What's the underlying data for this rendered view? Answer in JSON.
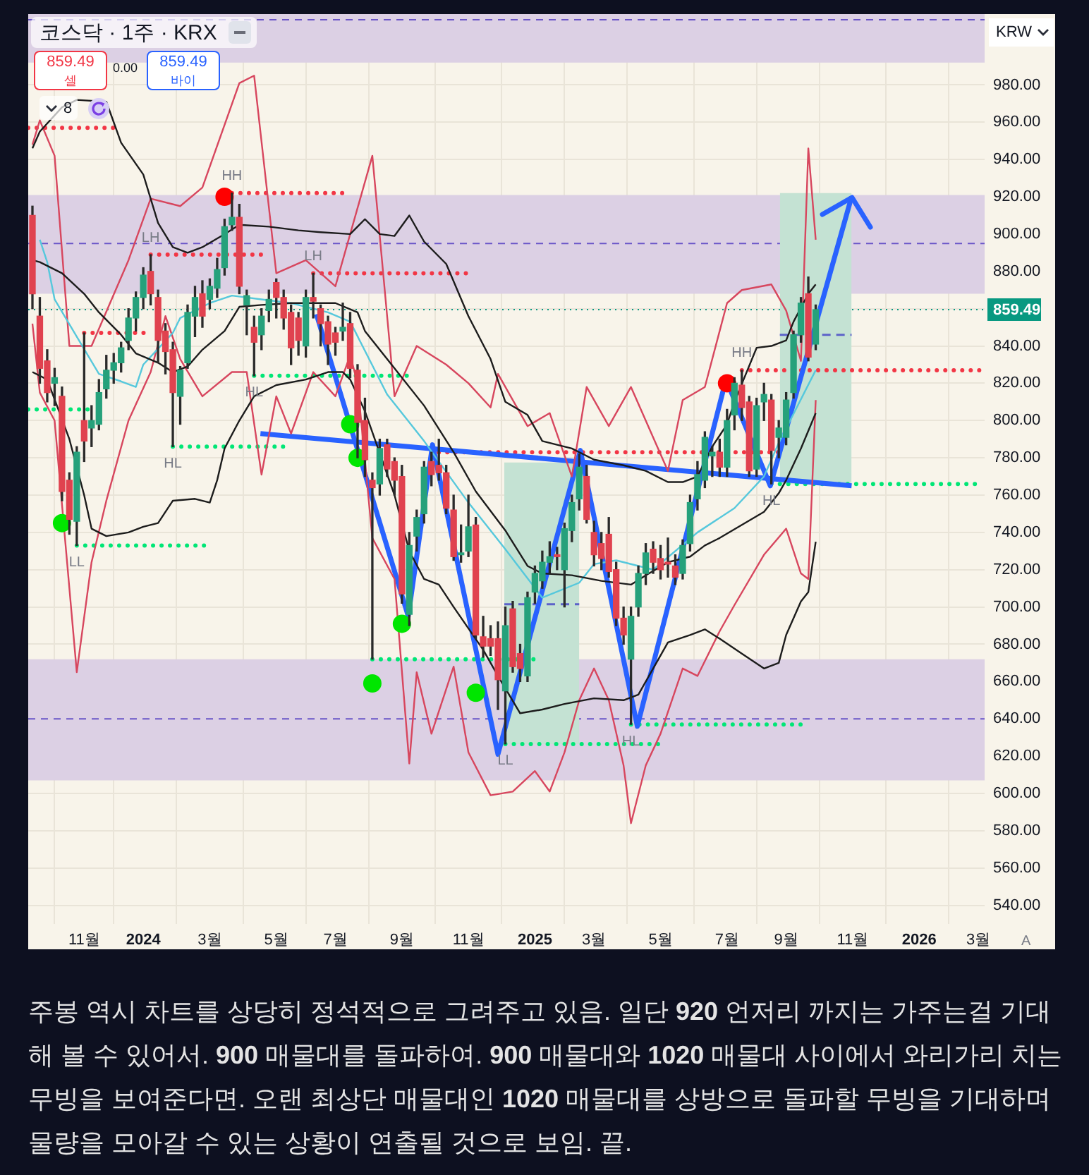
{
  "chart_data": {
    "type": "candlestick",
    "title": "코스닥 · 1주 · KRX",
    "x": [
      "2023-09-18",
      "2023-09-25",
      "2023-10-02",
      "2023-10-09",
      "2023-10-16",
      "2023-10-23",
      "2023-10-30",
      "2023-11-06",
      "2023-11-13",
      "2023-11-20",
      "2023-11-27",
      "2023-12-04",
      "2023-12-11",
      "2023-12-18",
      "2023-12-25",
      "2024-01-01",
      "2024-01-08",
      "2024-01-15",
      "2024-01-22",
      "2024-01-29",
      "2024-02-05",
      "2024-02-12",
      "2024-02-19",
      "2024-02-26",
      "2024-03-04",
      "2024-03-11",
      "2024-03-18",
      "2024-03-25",
      "2024-04-01",
      "2024-04-08",
      "2024-04-15",
      "2024-04-22",
      "2024-04-29",
      "2024-05-06",
      "2024-05-13",
      "2024-05-20",
      "2024-05-27",
      "2024-06-03",
      "2024-06-10",
      "2024-06-17",
      "2024-06-24",
      "2024-07-01",
      "2024-07-08",
      "2024-07-15",
      "2024-07-22",
      "2024-07-29",
      "2024-08-05",
      "2024-08-12",
      "2024-08-19",
      "2024-08-26",
      "2024-09-02",
      "2024-09-09",
      "2024-09-16",
      "2024-09-23",
      "2024-09-30",
      "2024-10-07",
      "2024-10-14",
      "2024-10-21",
      "2024-10-28",
      "2024-11-04",
      "2024-11-11",
      "2024-11-18",
      "2024-11-25",
      "2024-12-02",
      "2024-12-09",
      "2024-12-16",
      "2024-12-23",
      "2024-12-30",
      "2025-01-06",
      "2025-01-13",
      "2025-01-20",
      "2025-01-27",
      "2025-02-03",
      "2025-02-10",
      "2025-02-17",
      "2025-02-24",
      "2025-03-03",
      "2025-03-10",
      "2025-03-17",
      "2025-03-24",
      "2025-03-31",
      "2025-04-07",
      "2025-04-14",
      "2025-04-21",
      "2025-04-28",
      "2025-05-05",
      "2025-05-12",
      "2025-05-19",
      "2025-05-26",
      "2025-06-02",
      "2025-06-09",
      "2025-06-16",
      "2025-06-23",
      "2025-06-30",
      "2025-07-07",
      "2025-07-14",
      "2025-07-21",
      "2025-07-28",
      "2025-08-04",
      "2025-08-11",
      "2025-08-18",
      "2025-08-25",
      "2025-09-01",
      "2025-09-08",
      "2025-09-15",
      "2025-09-22",
      "2025-09-29"
    ],
    "ohlc": [
      [
        910,
        915,
        860,
        868
      ],
      [
        856,
        866,
        820,
        828
      ],
      [
        832,
        838,
        810,
        815
      ],
      [
        820,
        828,
        808,
        823
      ],
      [
        813,
        818,
        757,
        762
      ],
      [
        768,
        772,
        739,
        747
      ],
      [
        746,
        786,
        733,
        783
      ],
      [
        800,
        847,
        778,
        789
      ],
      [
        796,
        808,
        786,
        800
      ],
      [
        798,
        822,
        795,
        815
      ],
      [
        817,
        835,
        812,
        827
      ],
      [
        827,
        836,
        820,
        831
      ],
      [
        831,
        842,
        826,
        839
      ],
      [
        843,
        860,
        838,
        855
      ],
      [
        855,
        869,
        848,
        866
      ],
      [
        866,
        882,
        860,
        878
      ],
      [
        880,
        889,
        862,
        868
      ],
      [
        866,
        870,
        831,
        843
      ],
      [
        848,
        852,
        825,
        837
      ],
      [
        838,
        842,
        786,
        815
      ],
      [
        813,
        829,
        798,
        827
      ],
      [
        831,
        862,
        828,
        858
      ],
      [
        856,
        872,
        845,
        866
      ],
      [
        868,
        875,
        850,
        856
      ],
      [
        865,
        876,
        860,
        872
      ],
      [
        871,
        887,
        866,
        881
      ],
      [
        882,
        908,
        878,
        904
      ],
      [
        905,
        922,
        902,
        909
      ],
      [
        909,
        916,
        868,
        872
      ],
      [
        862,
        870,
        846,
        867
      ],
      [
        850,
        856,
        824,
        842
      ],
      [
        846,
        860,
        838,
        856
      ],
      [
        859,
        870,
        853,
        865
      ],
      [
        874,
        876,
        855,
        866
      ],
      [
        866,
        870,
        849,
        855
      ],
      [
        858,
        862,
        830,
        839
      ],
      [
        855,
        858,
        835,
        843
      ],
      [
        840,
        870,
        834,
        866
      ],
      [
        866,
        879,
        855,
        864
      ],
      [
        860,
        862,
        840,
        852
      ],
      [
        853,
        856,
        830,
        841
      ],
      [
        847,
        850,
        835,
        842
      ],
      [
        848,
        863,
        843,
        850
      ],
      [
        852,
        858,
        823,
        828
      ],
      [
        827,
        830,
        780,
        799
      ],
      [
        800,
        812,
        770,
        779
      ],
      [
        768,
        772,
        672,
        764
      ],
      [
        766,
        790,
        760,
        785
      ],
      [
        787,
        790,
        770,
        774
      ],
      [
        778,
        780,
        760,
        768
      ],
      [
        770,
        776,
        702,
        707
      ],
      [
        696,
        740,
        690,
        733
      ],
      [
        738,
        752,
        730,
        748
      ],
      [
        750,
        778,
        745,
        775
      ],
      [
        778,
        783,
        765,
        771
      ],
      [
        776,
        790,
        768,
        772
      ],
      [
        772,
        776,
        750,
        753
      ],
      [
        752,
        760,
        725,
        727
      ],
      [
        728,
        744,
        724,
        729
      ],
      [
        730,
        760,
        727,
        743
      ],
      [
        744,
        748,
        683,
        685
      ],
      [
        684,
        695,
        673,
        679
      ],
      [
        683,
        690,
        674,
        679
      ],
      [
        683,
        692,
        645,
        661
      ],
      [
        655,
        700,
        626.5,
        690
      ],
      [
        699,
        703,
        665,
        668
      ],
      [
        675,
        680,
        660,
        667
      ],
      [
        663,
        708,
        660,
        705
      ],
      [
        708,
        722,
        702,
        718
      ],
      [
        714,
        730,
        710,
        724
      ],
      [
        724,
        735,
        718,
        727
      ],
      [
        728,
        732,
        720,
        727
      ],
      [
        720,
        745,
        700,
        742
      ],
      [
        741,
        760,
        735,
        756
      ],
      [
        758,
        782,
        752,
        775
      ],
      [
        770,
        776,
        745,
        747
      ],
      [
        740,
        746,
        722,
        728
      ],
      [
        734,
        740,
        720,
        726
      ],
      [
        739,
        748,
        716,
        719
      ],
      [
        720,
        724,
        690,
        694
      ],
      [
        694,
        700,
        680,
        685
      ],
      [
        672,
        700,
        637,
        695
      ],
      [
        700,
        722,
        695,
        718
      ],
      [
        718,
        734,
        712,
        729
      ],
      [
        731,
        735,
        718,
        724
      ],
      [
        726,
        733,
        715,
        720
      ],
      [
        724,
        737,
        716,
        723
      ],
      [
        722,
        728,
        712,
        716
      ],
      [
        718,
        736,
        715,
        733
      ],
      [
        734,
        760,
        730,
        756
      ],
      [
        758,
        778,
        752,
        771
      ],
      [
        768,
        794,
        764,
        791
      ],
      [
        781,
        786,
        770,
        783
      ],
      [
        783,
        790,
        770,
        775
      ],
      [
        775,
        806,
        770,
        800
      ],
      [
        803,
        823,
        795,
        820
      ],
      [
        819,
        827,
        800,
        807
      ],
      [
        810,
        813,
        770,
        773
      ],
      [
        774,
        812,
        770,
        808
      ],
      [
        810,
        820,
        800,
        814
      ],
      [
        811,
        814,
        766,
        784
      ],
      [
        791,
        800,
        780,
        796
      ],
      [
        791,
        815,
        787,
        811
      ],
      [
        815,
        848,
        812,
        846
      ],
      [
        846,
        866,
        842,
        863
      ],
      [
        868,
        877,
        832,
        834
      ],
      [
        841,
        862,
        838,
        859.49
      ]
    ],
    "colors": [
      "#e0424f",
      "#e0424f",
      "#e0424f",
      "#26a17b",
      "#e0424f",
      "#e0424f",
      "#26a17b",
      "#e0424f",
      "#26a17b",
      "#26a17b",
      "#26a17b",
      "#26a17b",
      "#26a17b",
      "#26a17b",
      "#26a17b",
      "#26a17b",
      "#e0424f",
      "#e0424f",
      "#e0424f",
      "#e0424f",
      "#26a17b",
      "#26a17b",
      "#26a17b",
      "#e0424f",
      "#26a17b",
      "#26a17b",
      "#26a17b",
      "#26a17b",
      "#e0424f",
      "#26a17b",
      "#e0424f",
      "#26a17b",
      "#26a17b",
      "#e0424f",
      "#e0424f",
      "#e0424f",
      "#e0424f",
      "#26a17b",
      "#e0424f",
      "#e0424f",
      "#e0424f",
      "#e0424f",
      "#26a17b",
      "#e0424f",
      "#e0424f",
      "#e0424f",
      "#e0424f",
      "#26a17b",
      "#e0424f",
      "#e0424f",
      "#e0424f",
      "#26a17b",
      "#26a17b",
      "#26a17b",
      "#e0424f",
      "#e0424f",
      "#e0424f",
      "#e0424f",
      "#26a17b",
      "#26a17b",
      "#e0424f",
      "#e0424f",
      "#e0424f",
      "#e0424f",
      "#26a17b",
      "#e0424f",
      "#e0424f",
      "#26a17b",
      "#26a17b",
      "#26a17b",
      "#26a17b",
      "#e0424f",
      "#26a17b",
      "#26a17b",
      "#26a17b",
      "#e0424f",
      "#e0424f",
      "#e0424f",
      "#e0424f",
      "#e0424f",
      "#e0424f",
      "#26a17b",
      "#26a17b",
      "#26a17b",
      "#e0424f",
      "#e0424f",
      "#e0424f",
      "#e0424f",
      "#26a17b",
      "#26a17b",
      "#26a17b",
      "#26a17b",
      "#26a17b",
      "#e0424f",
      "#26a17b",
      "#26a17b",
      "#e0424f",
      "#e0424f",
      "#26a17b",
      "#26a17b",
      "#e0424f",
      "#26a17b",
      "#26a17b",
      "#26a17b",
      "#26a17b",
      "#e0424f",
      "#26a17b"
    ],
    "series": [
      {
        "type": "line",
        "color": "#1c1c1c",
        "x": [
          "2023-09-18",
          "2023-09-25",
          "2023-10-16",
          "2023-10-30",
          "2023-11-27",
          "2023-12-11",
          "2024-01-01",
          "2024-01-15",
          "2024-01-29",
          "2024-02-12",
          "2024-02-26",
          "2024-03-18",
          "2024-04-01",
          "2024-04-29",
          "2024-05-27",
          "2024-06-17",
          "2024-07-15",
          "2024-07-29",
          "2024-08-12",
          "2024-08-26",
          "2024-09-09",
          "2024-09-23",
          "2024-10-14",
          "2024-11-04",
          "2024-11-25",
          "2024-12-09",
          "2024-12-30",
          "2025-01-13",
          "2025-02-10",
          "2025-03-03",
          "2025-03-31",
          "2025-04-21",
          "2025-05-12",
          "2025-05-26",
          "2025-06-09",
          "2025-06-23",
          "2025-07-07",
          "2025-07-14",
          "2025-08-04",
          "2025-08-18",
          "2025-09-01",
          "2025-09-08",
          "2025-09-22",
          "2025-09-29"
        ],
        "values": [
          946,
          955,
          968,
          972,
          971,
          949,
          932,
          906,
          893,
          890,
          893,
          900,
          905,
          904,
          902,
          901,
          900,
          908,
          900,
          899,
          910,
          896,
          884,
          856,
          833,
          810,
          803,
          789,
          785,
          779,
          776,
          773,
          767,
          767,
          770,
          786,
          798,
          810,
          839,
          840,
          843,
          853,
          868,
          873
        ]
      },
      {
        "type": "line",
        "color": "#1c1c1c",
        "x": [
          "2023-09-18",
          "2023-09-25",
          "2023-10-16",
          "2023-11-06",
          "2023-11-20",
          "2023-12-11",
          "2023-12-25",
          "2024-01-15",
          "2024-01-29",
          "2024-02-12",
          "2024-02-26",
          "2024-03-18",
          "2024-04-01",
          "2024-04-22",
          "2024-05-20",
          "2024-06-17",
          "2024-07-01",
          "2024-07-22",
          "2024-07-29",
          "2024-08-26",
          "2024-09-23",
          "2024-10-21",
          "2024-11-11",
          "2024-12-09",
          "2024-12-30",
          "2025-01-13",
          "2025-02-10",
          "2025-03-10",
          "2025-04-07",
          "2025-04-21",
          "2025-05-12",
          "2025-06-02",
          "2025-06-16",
          "2025-06-30",
          "2025-07-21",
          "2025-08-11",
          "2025-08-25",
          "2025-09-01",
          "2025-09-15",
          "2025-09-29"
        ],
        "values": [
          886,
          885,
          879,
          868,
          858,
          846,
          836,
          831,
          826,
          829,
          838,
          848,
          861,
          862,
          863,
          863,
          863,
          858,
          848,
          828,
          808,
          783,
          762,
          741,
          722,
          718,
          717,
          714,
          712,
          717,
          724,
          727,
          733,
          737,
          744,
          751,
          761,
          768,
          785,
          804
        ]
      },
      {
        "type": "line",
        "color": "#1c1c1c",
        "x": [
          "2023-09-18",
          "2023-10-02",
          "2023-10-23",
          "2023-11-06",
          "2023-11-13",
          "2023-11-27",
          "2023-12-18",
          "2024-01-01",
          "2024-01-15",
          "2024-01-29",
          "2024-02-19",
          "2024-03-04",
          "2024-03-11",
          "2024-03-18",
          "2024-04-01",
          "2024-04-15",
          "2024-05-06",
          "2024-06-03",
          "2024-06-24",
          "2024-07-08",
          "2024-07-15",
          "2024-07-29",
          "2024-08-26",
          "2024-09-09",
          "2024-09-23",
          "2024-10-07",
          "2024-10-21",
          "2024-11-18",
          "2024-12-02",
          "2024-12-23",
          "2025-01-13",
          "2025-02-03",
          "2025-03-03",
          "2025-03-31",
          "2025-04-14",
          "2025-04-28",
          "2025-05-12",
          "2025-06-02",
          "2025-06-16",
          "2025-06-30",
          "2025-07-21",
          "2025-08-11",
          "2025-08-25",
          "2025-09-01",
          "2025-09-15",
          "2025-09-22",
          "2025-09-29"
        ],
        "values": [
          826,
          822,
          790,
          760,
          742,
          738,
          740,
          743,
          745,
          757,
          758,
          756,
          768,
          785,
          800,
          813,
          819,
          822,
          826,
          826,
          822,
          805,
          760,
          730,
          715,
          712,
          700,
          677,
          663,
          643,
          645,
          648,
          651,
          650,
          653,
          667,
          681,
          685,
          688,
          683,
          675,
          667,
          670,
          685,
          703,
          708,
          735
        ]
      },
      {
        "type": "line",
        "color": "#56c8dc",
        "x": [
          "2023-09-25",
          "2023-10-02",
          "2023-10-09",
          "2023-10-30",
          "2023-11-20",
          "2023-12-11",
          "2023-12-25",
          "2024-01-01",
          "2024-01-29",
          "2024-02-05",
          "2024-03-04",
          "2024-03-25",
          "2024-04-22",
          "2024-05-20",
          "2024-06-24",
          "2024-07-15",
          "2024-08-19",
          "2024-09-23",
          "2024-11-04",
          "2024-12-09",
          "2025-01-13",
          "2025-02-17",
          "2025-03-03",
          "2025-03-24",
          "2025-04-28",
          "2025-06-09",
          "2025-07-14",
          "2025-08-11",
          "2025-08-25",
          "2025-09-29"
        ],
        "values": [
          897,
          885,
          865,
          845,
          825,
          821,
          818,
          830,
          847,
          855,
          863,
          867,
          865,
          863,
          858,
          853,
          814,
          789,
          756,
          731,
          705,
          713,
          723,
          725,
          720,
          740,
          753,
          770,
          788,
          827
        ]
      },
      {
        "type": "line",
        "color": "#d7465e",
        "x": [
          "2023-09-18",
          "2023-09-25",
          "2023-10-09",
          "2023-10-23",
          "2023-11-13",
          "2023-12-18",
          "2024-01-08",
          "2024-02-05",
          "2024-02-26",
          "2024-04-01",
          "2024-04-15",
          "2024-05-06",
          "2024-06-03",
          "2024-07-01",
          "2024-08-05",
          "2024-08-26",
          "2024-09-16",
          "2024-10-14",
          "2024-11-04",
          "2024-11-25",
          "2024-12-02",
          "2024-12-30",
          "2025-01-20",
          "2025-02-10",
          "2025-02-24",
          "2025-03-17",
          "2025-04-07",
          "2025-05-12",
          "2025-05-26",
          "2025-06-16",
          "2025-07-07",
          "2025-07-21",
          "2025-08-18",
          "2025-09-01",
          "2025-09-15",
          "2025-09-22",
          "2025-09-29"
        ],
        "values": [
          948,
          961,
          942,
          840,
          840,
          886,
          919,
          915,
          925,
          981,
          985,
          879,
          886,
          872,
          942,
          813,
          840,
          830,
          820,
          807,
          825,
          797,
          804,
          770,
          818,
          797,
          818,
          773,
          811,
          818,
          863,
          870,
          873,
          859,
          832,
          946,
          897
        ]
      },
      {
        "type": "line",
        "color": "#d7465e",
        "x": [
          "2023-09-18",
          "2023-09-25",
          "2023-10-09",
          "2023-10-30",
          "2023-11-13",
          "2023-11-27",
          "2023-12-18",
          "2024-01-08",
          "2024-01-22",
          "2024-02-05",
          "2024-02-26",
          "2024-03-25",
          "2024-04-08",
          "2024-04-22",
          "2024-05-06",
          "2024-05-20",
          "2024-06-10",
          "2024-07-01",
          "2024-07-15",
          "2024-07-22",
          "2024-08-05",
          "2024-08-26",
          "2024-09-09",
          "2024-09-16",
          "2024-09-30",
          "2024-10-21",
          "2024-11-04",
          "2024-11-25",
          "2024-12-16",
          "2025-01-06",
          "2025-01-20",
          "2025-02-03",
          "2025-02-17",
          "2025-03-03",
          "2025-03-17",
          "2025-03-31",
          "2025-04-07",
          "2025-04-21",
          "2025-05-05",
          "2025-05-26",
          "2025-06-09",
          "2025-06-30",
          "2025-07-14",
          "2025-08-11",
          "2025-09-01",
          "2025-09-15",
          "2025-09-22",
          "2025-09-29"
        ],
        "values": [
          852,
          815,
          800,
          665,
          724,
          757,
          800,
          826,
          856,
          833,
          813,
          826,
          826,
          771,
          813,
          793,
          826,
          813,
          835,
          820,
          737,
          715,
          616,
          665,
          632,
          668,
          622,
          599,
          601,
          612,
          601,
          622,
          650,
          667,
          650,
          615,
          584,
          615,
          632,
          667,
          663,
          687,
          701,
          728,
          742,
          718,
          715,
          811
        ]
      },
      {
        "type": "line",
        "color": "#5c62c9",
        "line_style": "dashed",
        "x": [
          "2024-12-08",
          "2025-02-17"
        ],
        "values": [
          701.5,
          701.5
        ],
        "lower": [
          626.5,
          626.5
        ],
        "upper": [
          777.5,
          777.5
        ]
      },
      {
        "type": "line",
        "color": "#5c62c9",
        "line_style": "dashed",
        "x": [
          "2025-08-26",
          "2025-11-02"
        ],
        "values": [
          846,
          846
        ],
        "lower": [
          766,
          766
        ],
        "upper": [
          922,
          922
        ]
      },
      {
        "type": "line",
        "color": "#f23645",
        "line_style": "dotted",
        "x": [
          "2023-09-14",
          "2023-12-11"
        ],
        "values": [
          957,
          957
        ]
      },
      {
        "type": "line",
        "color": "#f23645",
        "line_style": "dotted",
        "x": [
          "2024-03-25",
          "2024-07-15"
        ],
        "values": [
          922,
          922
        ]
      },
      {
        "type": "line",
        "color": "#f23645",
        "line_style": "dotted",
        "x": [
          "2024-01-08",
          "2024-04-29"
        ],
        "values": [
          889,
          889
        ]
      },
      {
        "type": "line",
        "color": "#f23645",
        "line_style": "dotted",
        "x": [
          "2024-06-10",
          "2024-11-08"
        ],
        "values": [
          879,
          879
        ]
      },
      {
        "type": "line",
        "color": "#f23645",
        "line_style": "dotted",
        "x": [
          "2023-11-06",
          "2024-01-08"
        ],
        "values": [
          847,
          847
        ]
      },
      {
        "type": "line",
        "color": "#f23645",
        "line_style": "dotted",
        "x": [
          "2024-10-07",
          "2025-08-26"
        ],
        "values": [
          783,
          783
        ]
      },
      {
        "type": "line",
        "color": "#f23645",
        "line_style": "dotted",
        "x": [
          "2025-07-21",
          "2026-03-06"
        ],
        "values": [
          827,
          827
        ]
      },
      {
        "type": "line",
        "color": "#00e676",
        "line_style": "dotted",
        "x": [
          "2023-09-14",
          "2023-11-17"
        ],
        "values": [
          806,
          806
        ]
      },
      {
        "type": "line",
        "color": "#00e676",
        "line_style": "dotted",
        "x": [
          "2024-04-15",
          "2024-09-08"
        ],
        "values": [
          824,
          824
        ]
      },
      {
        "type": "line",
        "color": "#00e676",
        "line_style": "dotted",
        "x": [
          "2024-01-29",
          "2024-05-19"
        ],
        "values": [
          786,
          786
        ]
      },
      {
        "type": "line",
        "color": "#00e676",
        "line_style": "dotted",
        "x": [
          "2023-10-30",
          "2024-02-29"
        ],
        "values": [
          733,
          733
        ]
      },
      {
        "type": "line",
        "color": "#00e676",
        "line_style": "dotted",
        "x": [
          "2024-08-05",
          "2025-01-11"
        ],
        "values": [
          672,
          672
        ]
      },
      {
        "type": "line",
        "color": "#00e676",
        "line_style": "dotted",
        "x": [
          "2024-12-09",
          "2025-05-07"
        ],
        "values": [
          626.5,
          626.5
        ]
      },
      {
        "type": "line",
        "color": "#00e676",
        "line_style": "dotted",
        "x": [
          "2025-04-07",
          "2025-09-22"
        ],
        "values": [
          637,
          637
        ]
      },
      {
        "type": "line",
        "color": "#00e676",
        "line_style": "dotted",
        "x": [
          "2025-08-18",
          "2026-03-04"
        ],
        "values": [
          766,
          766
        ]
      },
      {
        "type": "line",
        "color": "#2962ff",
        "x": [
          "2024-04-21",
          "2025-11-02"
        ],
        "values": [
          793,
          765
        ]
      },
      {
        "type": "line",
        "color": "#2962ff",
        "x": [
          "2024-06-13",
          "2024-09-08",
          "2024-10-01",
          "2024-12-02",
          "2025-02-18",
          "2025-04-13",
          "2025-07-06",
          "2025-08-17",
          "2025-11-02"
        ],
        "values": [
          857,
          695,
          787,
          621,
          784,
          636,
          822,
          765,
          920
        ]
      },
      {
        "type": "scatter",
        "color": "#00e600",
        "marker": "circle",
        "x": [
          "2023-10-16",
          "2024-07-15",
          "2024-07-22",
          "2024-08-05",
          "2024-09-02",
          "2024-11-11"
        ],
        "values": [
          745,
          798,
          780,
          659,
          691,
          654
        ]
      },
      {
        "type": "scatter",
        "color": "#ff0000",
        "marker": "circle",
        "x": [
          "2024-03-18",
          "2025-07-07"
        ],
        "values": [
          920,
          820
        ]
      }
    ],
    "xlim": [
      "2023-09-14",
      "2026-03-08"
    ],
    "xticks": [
      {
        "value": "2023-11-06",
        "label": "11월"
      },
      {
        "value": "2024-01-01",
        "label": "2024"
      },
      {
        "value": "2024-03-04",
        "label": "3월"
      },
      {
        "value": "2024-05-06",
        "label": "5월"
      },
      {
        "value": "2024-07-01",
        "label": "7월"
      },
      {
        "value": "2024-09-02",
        "label": "9월"
      },
      {
        "value": "2024-11-04",
        "label": "11월"
      },
      {
        "value": "2025-01-06",
        "label": "2025"
      },
      {
        "value": "2025-03-03",
        "label": "3월"
      },
      {
        "value": "2025-05-05",
        "label": "5월"
      },
      {
        "value": "2025-07-07",
        "label": "7월"
      },
      {
        "value": "2025-09-01",
        "label": "9월"
      },
      {
        "value": "2025-11-03",
        "label": "11월"
      },
      {
        "value": "2026-01-05",
        "label": "2026"
      },
      {
        "value": "2026-03-02",
        "label": "3월"
      }
    ],
    "ylim": [
      530,
      1018
    ],
    "yticks": [
      {
        "value": 540,
        "label": "540.00"
      },
      {
        "value": 560,
        "label": "560.00"
      },
      {
        "value": 580,
        "label": "580.00"
      },
      {
        "value": 600,
        "label": "600.00"
      },
      {
        "value": 620,
        "label": "620.00"
      },
      {
        "value": 640,
        "label": "640.00"
      },
      {
        "value": 660,
        "label": "660.00"
      },
      {
        "value": 680,
        "label": "680.00"
      },
      {
        "value": 700,
        "label": "700.00"
      },
      {
        "value": 720,
        "label": "720.00"
      },
      {
        "value": 740,
        "label": "740.00"
      },
      {
        "value": 760,
        "label": "760.00"
      },
      {
        "value": 780,
        "label": "780.00"
      },
      {
        "value": 800,
        "label": "800.00"
      },
      {
        "value": 820,
        "label": "820.00"
      },
      {
        "value": 840,
        "label": "840.00"
      },
      {
        "value": 860,
        "label": null
      },
      {
        "value": 880,
        "label": "880.00"
      },
      {
        "value": 900,
        "label": "900.00"
      },
      {
        "value": 920,
        "label": "920.00"
      },
      {
        "value": 940,
        "label": "940.00"
      },
      {
        "value": 960,
        "label": "960.00"
      },
      {
        "value": 980,
        "label": "980.00"
      }
    ],
    "bands": [
      {
        "axis": "y",
        "from": 992,
        "to": 1018,
        "color": "#dcd0e4"
      },
      {
        "axis": "y",
        "from": 868,
        "to": 921,
        "color": "#dcd0e4"
      },
      {
        "axis": "y",
        "from": 607,
        "to": 672,
        "color": "#dcd0e4"
      }
    ],
    "ref_lines": [
      {
        "axis": "y",
        "value": 859.49,
        "label": "859.49",
        "color": "#089981",
        "line_style": "dotted"
      },
      {
        "axis": "y",
        "value": 1015,
        "color": "#6a55c8",
        "line_style": "dashed"
      },
      {
        "axis": "y",
        "value": 895,
        "color": "#6a55c8",
        "line_style": "dashed"
      },
      {
        "axis": "y",
        "value": 640,
        "color": "#6a55c8",
        "line_style": "dashed"
      }
    ],
    "grid": true,
    "annotations": [
      "859.49",
      "셀",
      "0.00",
      "859.49",
      "바이",
      "8",
      "KRW",
      "A",
      "주봉 역시 차트를 상당히 정석적으로 그려주고 있음. 일단 920 언저리 까지는 가주는걸 기대해 볼 수 있어서. 900 매물대를 돌파하여. 900 매물대와 1020 매물대 사이에서 와리가리 치는 무빙을 보여준다면. 오랜 최상단 매물대인 1020 매물대를 상방으로 돌파할 무빙을 기대하며 물량을 모아갈 수 있는 상황이 연출될 것으로 보임. 끝.",
      {
        "text": "HH",
        "x": "2024-03-25",
        "y": 922
      },
      {
        "text": "HL",
        "x": "2024-04-15",
        "y": 824
      },
      {
        "text": "HL",
        "x": "2024-01-29",
        "y": 786
      },
      {
        "text": "LH",
        "x": "2024-01-08",
        "y": 889
      },
      {
        "text": "LH",
        "x": "2024-06-10",
        "y": 879
      },
      {
        "text": "LL",
        "x": "2024-12-09",
        "y": 626.5
      },
      {
        "text": "HL",
        "x": "2025-04-07",
        "y": 637
      },
      {
        "text": "HH",
        "x": "2025-07-21",
        "y": 827
      },
      {
        "text": "HL",
        "x": "2025-08-18",
        "y": 766
      },
      {
        "text": "LL",
        "x": "2023-10-30",
        "y": 733
      }
    ]
  }
}
